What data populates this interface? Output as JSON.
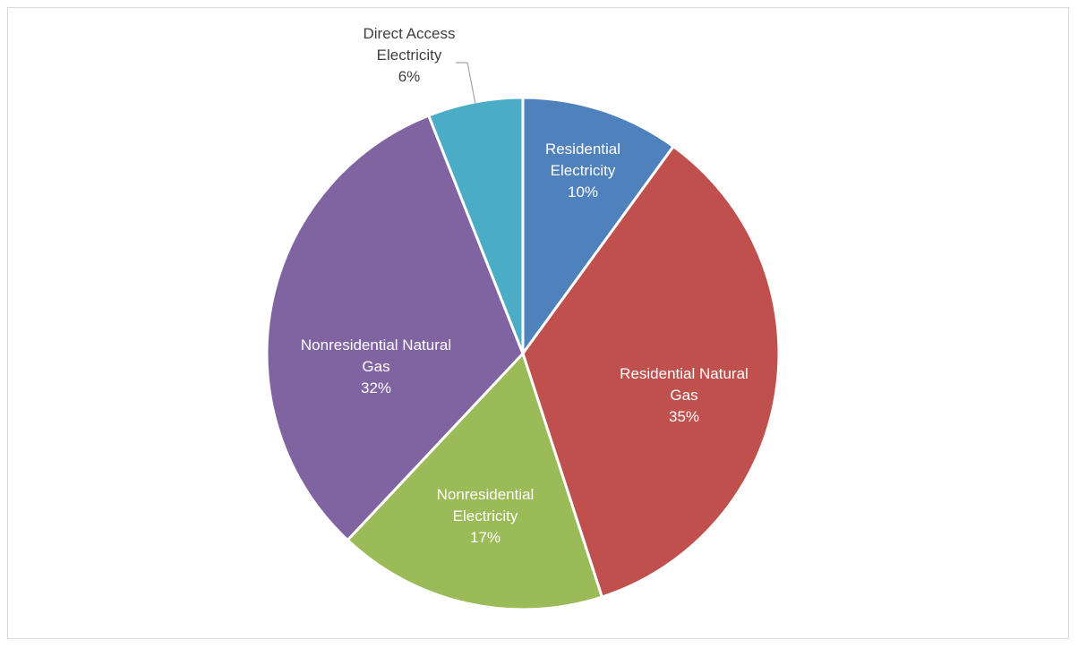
{
  "chart_data": {
    "type": "pie",
    "title": "",
    "categories": [
      "Residential Electricity",
      "Residential Natural Gas",
      "Nonresidential Electricity",
      "Nonresidential Natural Gas",
      "Direct Access Electricity"
    ],
    "values": [
      10,
      35,
      17,
      32,
      6
    ],
    "value_labels": [
      "10%",
      "35%",
      "17%",
      "32%",
      "6%"
    ],
    "legend": "none",
    "slices": [
      {
        "label_lines": [
          "Residential",
          "Electricity"
        ],
        "percent": "10%",
        "color": "#4f81bd",
        "label_color": "#ffffff"
      },
      {
        "label_lines": [
          "Residential Natural",
          "Gas"
        ],
        "percent": "35%",
        "color": "#c0504d",
        "label_color": "#ffffff"
      },
      {
        "label_lines": [
          "Nonresidential",
          "Electricity"
        ],
        "percent": "17%",
        "color": "#9bbb59",
        "label_color": "#ffffff"
      },
      {
        "label_lines": [
          "Nonresidential Natural",
          "Gas"
        ],
        "percent": "32%",
        "color": "#8064a2",
        "label_color": "#ffffff"
      },
      {
        "label_lines": [
          "Direct Access",
          "Electricity"
        ],
        "percent": "6%",
        "color": "#4bacc6",
        "label_color": "#404040"
      }
    ]
  }
}
